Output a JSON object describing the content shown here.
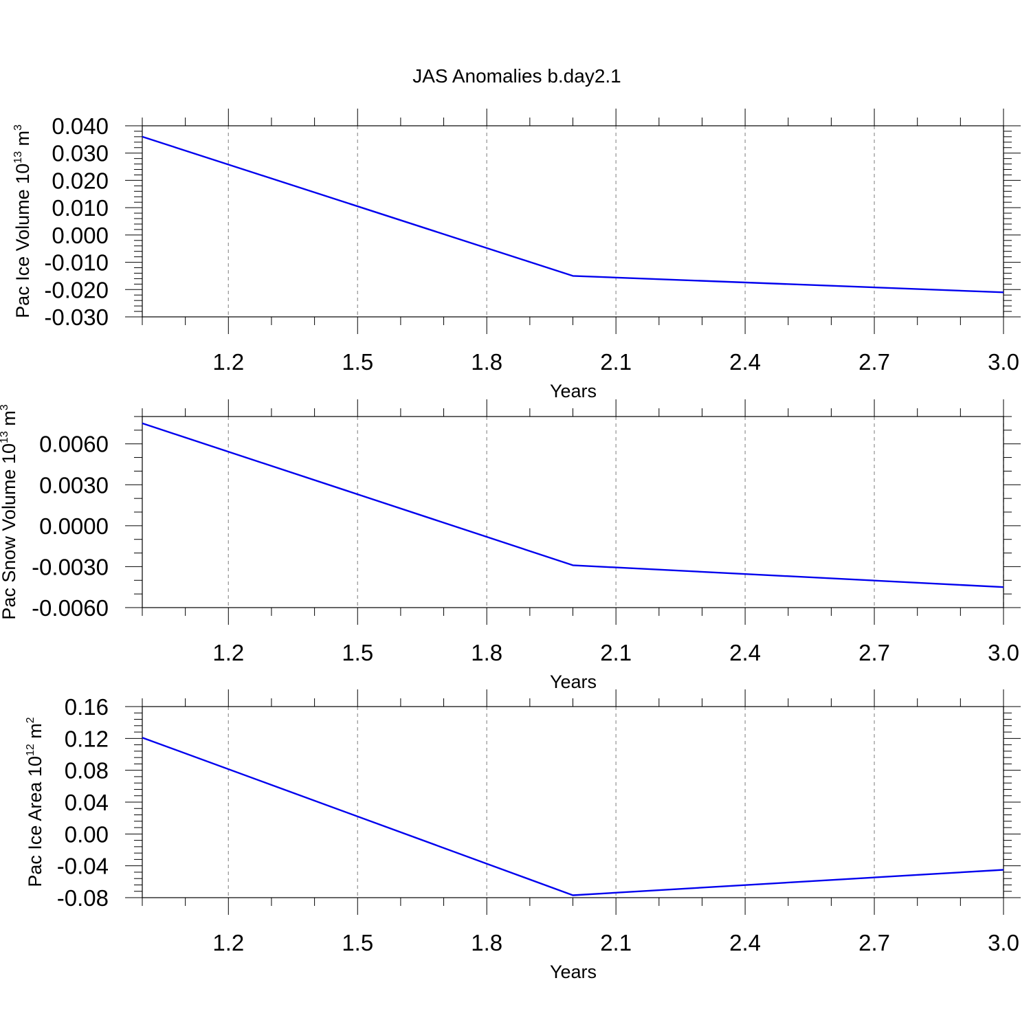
{
  "chart_data": {
    "title": "JAS Anomalies b.day2.1",
    "panels": [
      {
        "type": "line",
        "ylabel": "Pac Ice Volume",
        "yunit_base": "10",
        "yunit_exp": "13",
        "yunit_unit": "m",
        "yunit_unit_exp": "3",
        "xlabel": "Years",
        "x": [
          1,
          2,
          3
        ],
        "values": [
          0.036,
          -0.015,
          -0.021
        ],
        "xlim": [
          1,
          3
        ],
        "ylim": [
          -0.03,
          0.04
        ],
        "yticks": [
          -0.03,
          -0.02,
          -0.01,
          0.0,
          0.01,
          0.02,
          0.03,
          0.04
        ],
        "ytick_labels": [
          "-0.030",
          "-0.020",
          "-0.010",
          "0.000",
          "0.010",
          "0.020",
          "0.030",
          "0.040"
        ],
        "yminor": 0.002
      },
      {
        "type": "line",
        "ylabel": "Pac Snow Volume",
        "yunit_base": "10",
        "yunit_exp": "13",
        "yunit_unit": "m",
        "yunit_unit_exp": "3",
        "xlabel": "Years",
        "x": [
          1,
          2,
          3
        ],
        "values": [
          0.0075,
          -0.0029,
          -0.0045
        ],
        "xlim": [
          1,
          3
        ],
        "ylim": [
          -0.006,
          0.008
        ],
        "yticks": [
          -0.006,
          -0.003,
          0.0,
          0.003,
          0.006
        ],
        "ytick_labels": [
          "-0.0060",
          "-0.0030",
          "0.0000",
          "0.0030",
          "0.0060"
        ],
        "yminor": 0.001
      },
      {
        "type": "line",
        "ylabel": "Pac Ice Area",
        "yunit_base": "10",
        "yunit_exp": "12",
        "yunit_unit": "m",
        "yunit_unit_exp": "2",
        "xlabel": "Years",
        "x": [
          1,
          2,
          3
        ],
        "values": [
          0.121,
          -0.077,
          -0.045
        ],
        "xlim": [
          1,
          3
        ],
        "ylim": [
          -0.08,
          0.16
        ],
        "yticks": [
          -0.08,
          -0.04,
          0.0,
          0.04,
          0.08,
          0.12,
          0.16
        ],
        "ytick_labels": [
          "-0.08",
          "-0.04",
          "0.00",
          "0.04",
          "0.08",
          "0.12",
          "0.16"
        ],
        "yminor": 0.008
      }
    ],
    "xticks": [
      1.2,
      1.5,
      1.8,
      2.1,
      2.4,
      2.7,
      3.0
    ],
    "xtick_labels": [
      "1.2",
      "1.5",
      "1.8",
      "2.1",
      "2.4",
      "2.7",
      "3.0"
    ],
    "xminor": 0.1,
    "grid": "vertical-dashed",
    "line_color": "#0000ee",
    "grid_color": "#999999"
  }
}
